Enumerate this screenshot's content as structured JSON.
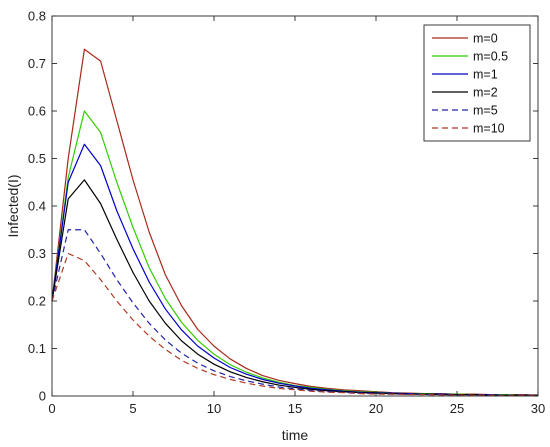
{
  "chart_data": {
    "type": "line",
    "title": "",
    "xlabel": "time",
    "ylabel": "Infected(I)",
    "xlim": [
      0,
      30
    ],
    "ylim": [
      0,
      0.8
    ],
    "xticks": [
      0,
      5,
      10,
      15,
      20,
      25,
      30
    ],
    "yticks": [
      0,
      0.1,
      0.2,
      0.3,
      0.4,
      0.5,
      0.6,
      0.7,
      0.8
    ],
    "xtick_labels": [
      "0",
      "5",
      "10",
      "15",
      "20",
      "25",
      "30"
    ],
    "ytick_labels": [
      "0",
      "0.1",
      "0.2",
      "0.3",
      "0.4",
      "0.5",
      "0.6",
      "0.7",
      "0.8"
    ],
    "grid": false,
    "legend_position": "top-right",
    "x": [
      0,
      1,
      2,
      3,
      4,
      5,
      6,
      7,
      8,
      9,
      10,
      11,
      12,
      13,
      14,
      15,
      16,
      17,
      18,
      19,
      20,
      21,
      22,
      23,
      24,
      25,
      26,
      27,
      28,
      29,
      30
    ],
    "series": [
      {
        "name": "m=0",
        "color": "#a52a1a",
        "dash": "solid",
        "values": [
          0.2,
          0.5,
          0.73,
          0.705,
          0.58,
          0.455,
          0.345,
          0.255,
          0.19,
          0.14,
          0.105,
          0.078,
          0.058,
          0.043,
          0.033,
          0.026,
          0.02,
          0.016,
          0.013,
          0.011,
          0.009,
          0.007,
          0.006,
          0.005,
          0.005,
          0.004,
          0.004,
          0.003,
          0.003,
          0.003,
          0.002
        ]
      },
      {
        "name": "m=0.5",
        "color": "#33cc00",
        "dash": "solid",
        "values": [
          0.2,
          0.46,
          0.6,
          0.555,
          0.45,
          0.355,
          0.27,
          0.205,
          0.155,
          0.117,
          0.088,
          0.066,
          0.05,
          0.038,
          0.029,
          0.022,
          0.018,
          0.014,
          0.011,
          0.009,
          0.008,
          0.006,
          0.005,
          0.005,
          0.004,
          0.004,
          0.003,
          0.003,
          0.003,
          0.002,
          0.002
        ]
      },
      {
        "name": "m=1",
        "color": "#0000cc",
        "dash": "solid",
        "values": [
          0.2,
          0.45,
          0.53,
          0.485,
          0.39,
          0.31,
          0.24,
          0.183,
          0.139,
          0.105,
          0.08,
          0.06,
          0.046,
          0.035,
          0.027,
          0.021,
          0.016,
          0.013,
          0.01,
          0.008,
          0.007,
          0.006,
          0.005,
          0.004,
          0.004,
          0.003,
          0.003,
          0.003,
          0.002,
          0.002,
          0.002
        ]
      },
      {
        "name": "m=2",
        "color": "#000000",
        "dash": "solid",
        "values": [
          0.2,
          0.415,
          0.455,
          0.405,
          0.33,
          0.26,
          0.2,
          0.153,
          0.116,
          0.088,
          0.067,
          0.051,
          0.039,
          0.03,
          0.023,
          0.018,
          0.014,
          0.011,
          0.009,
          0.007,
          0.006,
          0.005,
          0.004,
          0.004,
          0.003,
          0.003,
          0.003,
          0.002,
          0.002,
          0.002,
          0.002
        ]
      },
      {
        "name": "m=5",
        "color": "#2222aa",
        "dash": "dashed",
        "values": [
          0.2,
          0.35,
          0.35,
          0.3,
          0.245,
          0.196,
          0.153,
          0.118,
          0.09,
          0.069,
          0.053,
          0.041,
          0.032,
          0.025,
          0.019,
          0.015,
          0.012,
          0.009,
          0.008,
          0.006,
          0.005,
          0.004,
          0.004,
          0.003,
          0.003,
          0.002,
          0.002,
          0.002,
          0.002,
          0.002,
          0.001
        ]
      },
      {
        "name": "m=10",
        "color": "#b03a24",
        "dash": "dashed",
        "values": [
          0.2,
          0.3,
          0.285,
          0.245,
          0.2,
          0.16,
          0.126,
          0.098,
          0.075,
          0.058,
          0.045,
          0.035,
          0.027,
          0.021,
          0.016,
          0.013,
          0.01,
          0.008,
          0.007,
          0.005,
          0.004,
          0.004,
          0.003,
          0.003,
          0.002,
          0.002,
          0.002,
          0.002,
          0.001,
          0.001,
          0.001
        ]
      }
    ]
  }
}
